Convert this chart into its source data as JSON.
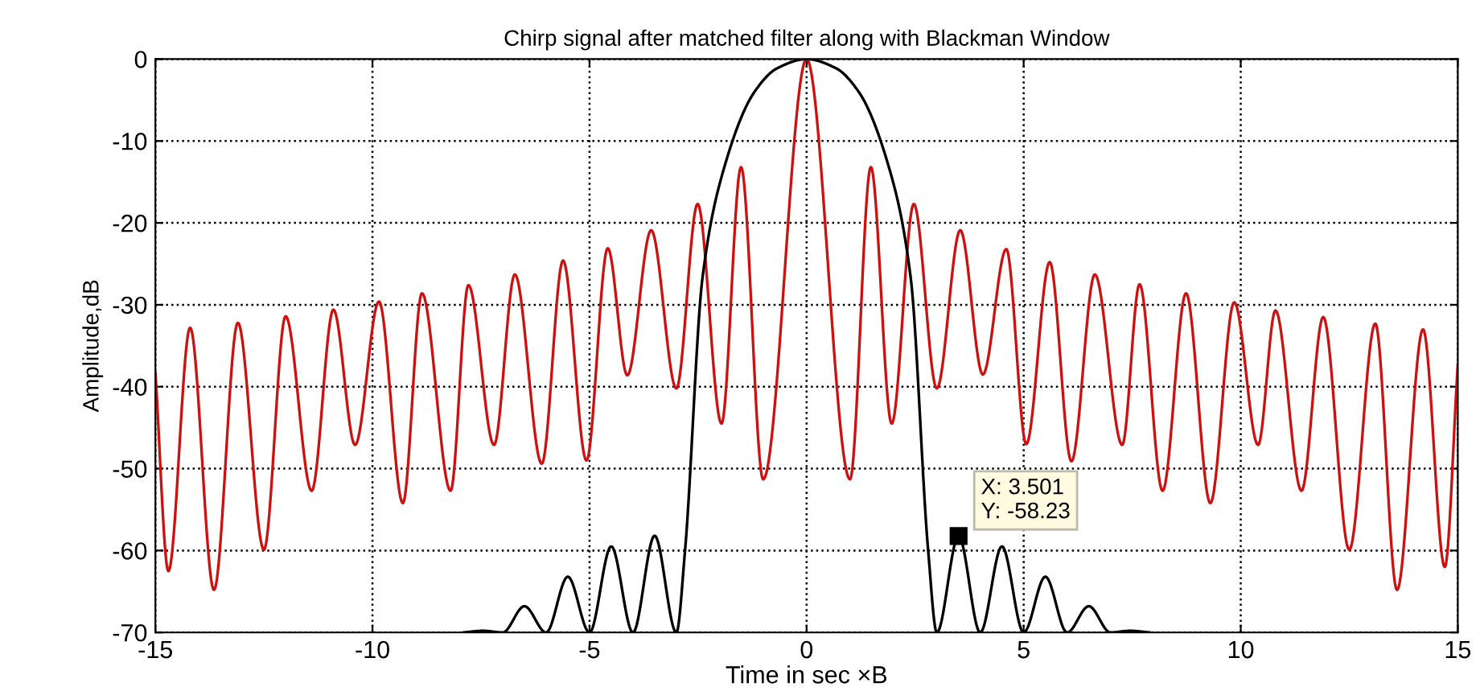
{
  "chart_data": {
    "type": "line",
    "title": "Chirp signal after matched filter along with Blackman Window",
    "xlabel": "Time in sec ×B",
    "ylabel": "Amplitude,dB",
    "xlim": [
      -15,
      15
    ],
    "ylim": [
      -70,
      0
    ],
    "xticks": [
      -15,
      -10,
      -5,
      0,
      5,
      10,
      15
    ],
    "yticks": [
      -70,
      -60,
      -50,
      -40,
      -30,
      -20,
      -10,
      0
    ],
    "grid": true,
    "legend": false,
    "marker": "none",
    "line_style": "solid",
    "series": [
      {
        "color": "#cc1111",
        "x": [
          -15,
          -14.7,
          -14.2,
          -13.65,
          -13.1,
          -12.5,
          -12.0,
          -11.4,
          -10.9,
          -10.4,
          -9.85,
          -9.3,
          -8.86,
          -8.2,
          -7.79,
          -7.2,
          -6.72,
          -6.1,
          -5.61,
          -5.07,
          -4.58,
          -4.13,
          -3.58,
          -3.0,
          -2.51,
          -1.96,
          -1.51,
          -1.0,
          0,
          1.0,
          1.48,
          1.96,
          2.47,
          3.0,
          3.54,
          4.06,
          4.6,
          5.06,
          5.6,
          6.1,
          6.64,
          7.27,
          7.67,
          8.2,
          8.74,
          9.3,
          9.85,
          10.4,
          10.8,
          11.4,
          11.9,
          12.5,
          13.1,
          13.6,
          14.2,
          14.7,
          15
        ],
        "values": [
          -38.3,
          -62.5,
          -32.8,
          -64.8,
          -32.2,
          -59.9,
          -31.4,
          -52.7,
          -30.6,
          -47.1,
          -29.6,
          -54.2,
          -28.6,
          -52.7,
          -27.6,
          -47.1,
          -26.3,
          -49.4,
          -24.6,
          -49.0,
          -23.1,
          -38.6,
          -20.9,
          -40.2,
          -17.7,
          -44.5,
          -13.2,
          -51.3,
          0,
          -51.3,
          -13.2,
          -44.5,
          -17.7,
          -40.2,
          -20.9,
          -38.5,
          -23.2,
          -47,
          -24.8,
          -49.1,
          -26.3,
          -47.1,
          -27.5,
          -52.7,
          -28.6,
          -54.2,
          -29.7,
          -47.1,
          -30.7,
          -52.7,
          -31.5,
          -59.9,
          -32.3,
          -64.8,
          -33.0,
          -62,
          -37.3
        ]
      },
      {
        "color": "#000000",
        "x": [
          -7.9,
          -7.45,
          -7.0,
          -6.5,
          -6.0,
          -5.5,
          -5.0,
          -4.5,
          -4.0,
          -3.5,
          -3.0,
          -2.8,
          -2.4,
          -1.96,
          -1.2,
          -0.67,
          0,
          0.67,
          1.2,
          1.96,
          2.4,
          2.8,
          3.0,
          3.501,
          4.0,
          4.5,
          5.0,
          5.5,
          6.0,
          6.5,
          7.0,
          7.45,
          7.9
        ],
        "values": [
          -70,
          -69.8,
          -70,
          -66.8,
          -70,
          -63.2,
          -70,
          -59.5,
          -70,
          -58.2,
          -70,
          -60,
          -26.8,
          -14.4,
          -4,
          -1.1,
          0,
          -1.1,
          -4,
          -14.4,
          -26.8,
          -60,
          -70,
          -58.23,
          -70,
          -59.5,
          -70,
          -63.2,
          -70,
          -66.8,
          -70,
          -69.8,
          -70
        ]
      }
    ],
    "annotations": [
      {
        "text": "X: 3.501\nY: -58.23",
        "x": 3.501,
        "y": -58.23
      }
    ]
  }
}
